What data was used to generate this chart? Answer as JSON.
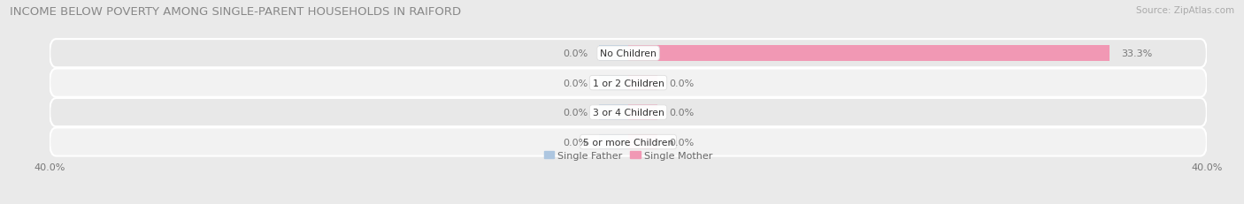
{
  "title": "INCOME BELOW POVERTY AMONG SINGLE-PARENT HOUSEHOLDS IN RAIFORD",
  "source": "Source: ZipAtlas.com",
  "categories": [
    "No Children",
    "1 or 2 Children",
    "3 or 4 Children",
    "5 or more Children"
  ],
  "single_father": [
    0.0,
    0.0,
    0.0,
    0.0
  ],
  "single_mother": [
    33.3,
    0.0,
    0.0,
    0.0
  ],
  "xlim": 40.0,
  "stub_val": 2.0,
  "bar_height": 0.52,
  "father_color": "#adc6e0",
  "mother_color": "#f198b4",
  "bg_color": "#eaeaea",
  "row_colors": [
    "#e8e8e8",
    "#f2f2f2",
    "#e8e8e8",
    "#f2f2f2"
  ],
  "title_fontsize": 9.5,
  "label_fontsize": 8.0,
  "category_fontsize": 7.8,
  "legend_fontsize": 8.0,
  "axis_label_fontsize": 8.0,
  "source_fontsize": 7.5,
  "title_color": "#888888",
  "label_color": "#777777",
  "source_color": "#aaaaaa"
}
